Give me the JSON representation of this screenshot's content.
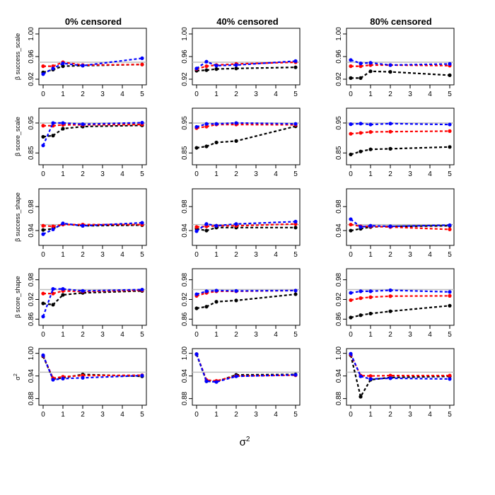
{
  "colors": {
    "black": "#000000",
    "red": "#ff0000",
    "blue": "#0000ff",
    "reference": "#bebebe"
  },
  "chart_data": {
    "type": "line",
    "title": "",
    "column_titles": [
      "0% censored",
      "40% censored",
      "80% censored"
    ],
    "xlabel": "σ",
    "xlabel_superscript": "2",
    "x": [
      0,
      0.5,
      1,
      2,
      5
    ],
    "x_ticks": [
      "0",
      "1",
      "2",
      "3",
      "4",
      "5"
    ],
    "x_tick_values": [
      0,
      1,
      2,
      3,
      4,
      5
    ],
    "xlim": [
      0,
      5
    ],
    "rows": [
      {
        "ylabel": "β success_scale",
        "ylim": [
          0.915,
          1.005
        ],
        "y_tick_values": [
          0.92,
          0.96,
          1.0
        ],
        "y_ticks": [
          "0.92",
          "0.96",
          "1.00"
        ],
        "reference": 0.95,
        "panels": [
          {
            "series": [
              {
                "name": "black",
                "values": [
                  0.932,
                  0.937,
                  0.943,
                  0.944,
                  0.946
                ]
              },
              {
                "name": "red",
                "values": [
                  0.943,
                  0.943,
                  0.95,
                  0.945,
                  0.946
                ]
              },
              {
                "name": "blue",
                "values": [
                  0.929,
                  0.939,
                  0.948,
                  0.944,
                  0.957
                ]
              }
            ]
          },
          {
            "series": [
              {
                "name": "black",
                "values": [
                  0.935,
                  0.936,
                  0.938,
                  0.939,
                  0.941
                ]
              },
              {
                "name": "red",
                "values": [
                  0.938,
                  0.943,
                  0.945,
                  0.947,
                  0.95
                ]
              },
              {
                "name": "blue",
                "values": [
                  0.939,
                  0.951,
                  0.944,
                  0.945,
                  0.952
                ]
              }
            ]
          },
          {
            "series": [
              {
                "name": "black",
                "values": [
                  0.922,
                  0.922,
                  0.934,
                  0.933,
                  0.927
                ]
              },
              {
                "name": "red",
                "values": [
                  0.943,
                  0.943,
                  0.945,
                  0.945,
                  0.944
                ]
              },
              {
                "name": "blue",
                "values": [
                  0.954,
                  0.948,
                  0.949,
                  0.945,
                  0.947
                ]
              }
            ]
          }
        ]
      },
      {
        "ylabel": "β score_scale",
        "ylim": [
          0.82,
          0.99
        ],
        "y_tick_values": [
          0.85,
          0.95
        ],
        "y_ticks": [
          "0.85",
          "0.95"
        ],
        "reference": 0.95,
        "panels": [
          {
            "series": [
              {
                "name": "black",
                "values": [
                  0.904,
                  0.908,
                  0.931,
                  0.938,
                  0.942
                ]
              },
              {
                "name": "red",
                "values": [
                  0.941,
                  0.941,
                  0.944,
                  0.944,
                  0.945
                ]
              },
              {
                "name": "blue",
                "values": [
                  0.875,
                  0.95,
                  0.95,
                  0.946,
                  0.951
                ]
              }
            ]
          },
          {
            "series": [
              {
                "name": "black",
                "values": [
                  0.867,
                  0.872,
                  0.885,
                  0.89,
                  0.939
                ]
              },
              {
                "name": "red",
                "values": [
                  0.933,
                  0.938,
                  0.945,
                  0.945,
                  0.944
                ]
              },
              {
                "name": "blue",
                "values": [
                  0.937,
                  0.947,
                  0.947,
                  0.95,
                  0.947
                ]
              }
            ]
          },
          {
            "series": [
              {
                "name": "black",
                "values": [
                  0.845,
                  0.855,
                  0.862,
                  0.864,
                  0.87
                ]
              },
              {
                "name": "red",
                "values": [
                  0.914,
                  0.917,
                  0.92,
                  0.921,
                  0.923
                ]
              },
              {
                "name": "blue",
                "values": [
                  0.946,
                  0.948,
                  0.945,
                  0.948,
                  0.945
                ]
              }
            ]
          }
        ]
      },
      {
        "ylabel": "β success_shape",
        "ylim": [
          0.92,
          1.005
        ],
        "y_tick_values": [
          0.94,
          0.98
        ],
        "y_ticks": [
          "0.94",
          "0.98"
        ],
        "reference": 0.95,
        "panels": [
          {
            "series": [
              {
                "name": "black",
                "values": [
                  0.941,
                  0.943,
                  0.951,
                  0.948,
                  0.949
                ]
              },
              {
                "name": "red",
                "values": [
                  0.948,
                  0.947,
                  0.95,
                  0.95,
                  0.95
                ]
              },
              {
                "name": "blue",
                "values": [
                  0.934,
                  0.942,
                  0.952,
                  0.948,
                  0.953
                ]
              }
            ]
          },
          {
            "series": [
              {
                "name": "black",
                "values": [
                  0.943,
                  0.94,
                  0.945,
                  0.945,
                  0.945
                ]
              },
              {
                "name": "red",
                "values": [
                  0.946,
                  0.947,
                  0.948,
                  0.948,
                  0.951
                ]
              },
              {
                "name": "blue",
                "values": [
                  0.939,
                  0.951,
                  0.948,
                  0.951,
                  0.955
                ]
              }
            ]
          },
          {
            "series": [
              {
                "name": "black",
                "values": [
                  0.94,
                  0.943,
                  0.946,
                  0.947,
                  0.948
                ]
              },
              {
                "name": "red",
                "values": [
                  0.95,
                  0.947,
                  0.947,
                  0.946,
                  0.942
                ]
              },
              {
                "name": "blue",
                "values": [
                  0.959,
                  0.946,
                  0.948,
                  0.947,
                  0.949
                ]
              }
            ]
          }
        ]
      },
      {
        "ylabel": "β score_shape",
        "ylim": [
          0.85,
          1.005
        ],
        "y_tick_values": [
          0.86,
          0.92,
          0.98
        ],
        "y_ticks": [
          "0.86",
          "0.92",
          "0.98"
        ],
        "reference": 0.95,
        "panels": [
          {
            "series": [
              {
                "name": "black",
                "values": [
                  0.908,
                  0.904,
                  0.934,
                  0.94,
                  0.946
                ]
              },
              {
                "name": "red",
                "values": [
                  0.938,
                  0.938,
                  0.946,
                  0.944,
                  0.948
                ]
              },
              {
                "name": "blue",
                "values": [
                  0.868,
                  0.952,
                  0.952,
                  0.946,
                  0.95
                ]
              }
            ]
          },
          {
            "series": [
              {
                "name": "black",
                "values": [
                  0.893,
                  0.898,
                  0.913,
                  0.917,
                  0.936
                ]
              },
              {
                "name": "red",
                "values": [
                  0.931,
                  0.94,
                  0.945,
                  0.945,
                  0.947
                ]
              },
              {
                "name": "blue",
                "values": [
                  0.936,
                  0.945,
                  0.947,
                  0.946,
                  0.947
                ]
              }
            ]
          },
          {
            "series": [
              {
                "name": "black",
                "values": [
                  0.865,
                  0.872,
                  0.877,
                  0.884,
                  0.901
                ]
              },
              {
                "name": "red",
                "values": [
                  0.918,
                  0.924,
                  0.927,
                  0.93,
                  0.931
                ]
              },
              {
                "name": "blue",
                "values": [
                  0.94,
                  0.945,
                  0.945,
                  0.948,
                  0.943
                ]
              }
            ]
          }
        ]
      },
      {
        "ylabel": "σ",
        "ylabel_superscript": "2",
        "ylim": [
          0.87,
          1.005
        ],
        "y_tick_values": [
          0.88,
          0.94,
          1.0
        ],
        "y_ticks": [
          "0.88",
          "0.94",
          "1.00"
        ],
        "reference": 0.95,
        "panels": [
          {
            "series": [
              {
                "name": "black",
                "values": [
                  0.992,
                  0.932,
                  0.935,
                  0.944,
                  0.939
                ]
              },
              {
                "name": "red",
                "values": [
                  0.994,
                  0.934,
                  0.938,
                  0.941,
                  0.942
                ]
              },
              {
                "name": "blue",
                "values": [
                  0.995,
                  0.93,
                  0.933,
                  0.935,
                  0.941
                ]
              }
            ]
          },
          {
            "series": [
              {
                "name": "black",
                "values": [
                  0.997,
                  0.926,
                  0.925,
                  0.943,
                  0.944
                ]
              },
              {
                "name": "red",
                "values": [
                  0.998,
                  0.929,
                  0.927,
                  0.94,
                  0.942
                ]
              },
              {
                "name": "blue",
                "values": [
                  0.998,
                  0.926,
                  0.924,
                  0.939,
                  0.943
                ]
              }
            ]
          },
          {
            "series": [
              {
                "name": "black",
                "values": [
                  0.995,
                  0.885,
                  0.93,
                  0.936,
                  0.939
                ]
              },
              {
                "name": "red",
                "values": [
                  0.997,
                  0.941,
                  0.94,
                  0.941,
                  0.941
                ]
              },
              {
                "name": "blue",
                "values": [
                  0.999,
                  0.939,
                  0.932,
                  0.934,
                  0.932
                ]
              }
            ]
          }
        ]
      }
    ]
  }
}
